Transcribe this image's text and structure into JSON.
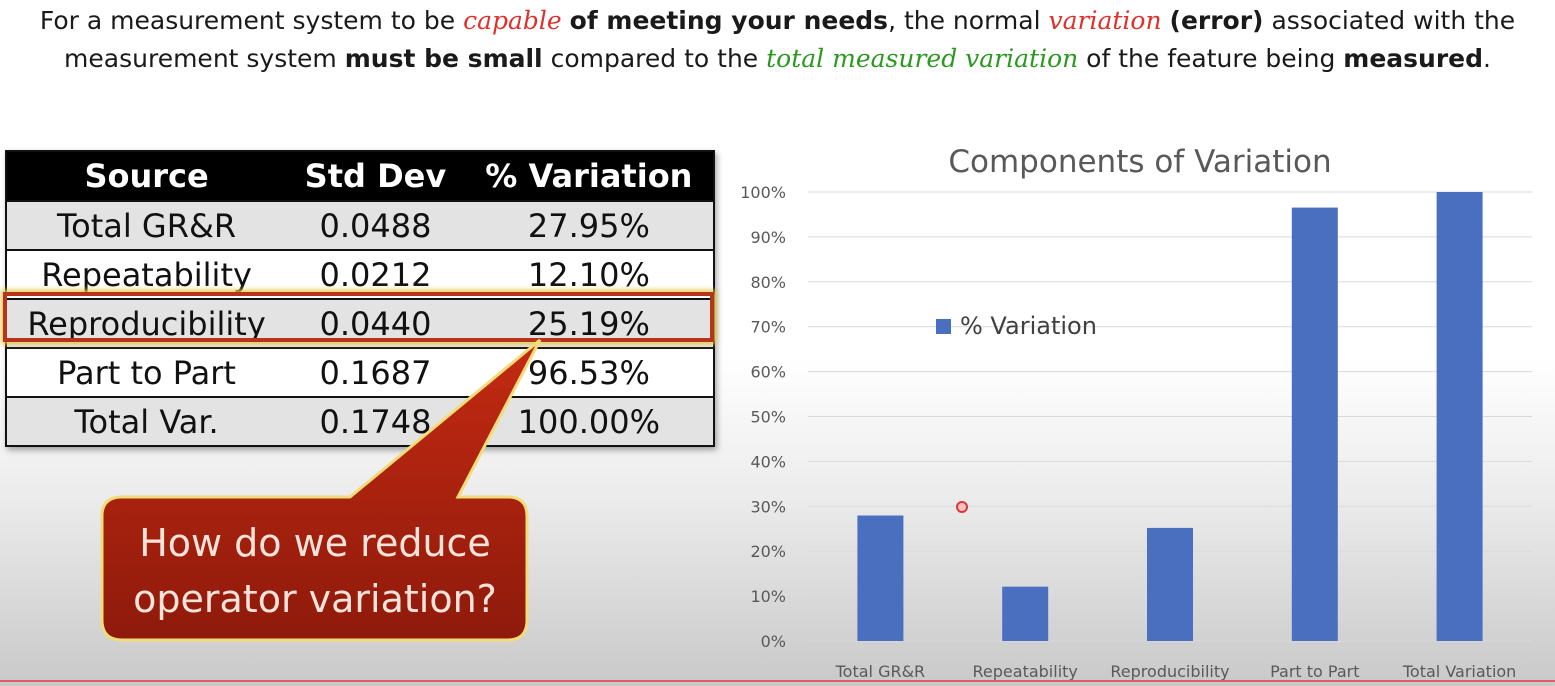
{
  "headline": {
    "l1_a": "For a measurement system to be ",
    "l1_b": "capable",
    "l1_c": "of meeting your needs",
    "l1_d": ", the normal ",
    "l1_e": "variation",
    "l1_f": "(error)",
    "l1_g": " associated with the",
    "l2_a": "measurement system ",
    "l2_b": "must be small",
    "l2_c": " compared to the ",
    "l2_d": "total measured variation",
    "l2_e": " of the feature being ",
    "l2_f": "measured",
    "l2_g": "."
  },
  "table": {
    "headers": [
      "Source",
      "Std Dev",
      "% Variation"
    ],
    "rows": [
      [
        "Total GR&R",
        "0.0488",
        "27.95%"
      ],
      [
        "Repeatability",
        "0.0212",
        "12.10%"
      ],
      [
        "Reproducibility",
        "0.0440",
        "25.19%"
      ],
      [
        "Part to Part",
        "0.1687",
        "96.53%"
      ],
      [
        "Total Var.",
        "0.1748",
        "100.00%"
      ]
    ]
  },
  "callout": {
    "line1": "How do we reduce",
    "line2": "operator variation?"
  },
  "colors": {
    "bar": "#4a6fbe",
    "callout": "#a8200f",
    "highlight": "#b5341a"
  },
  "chart_data": {
    "type": "bar",
    "title": "Components of Variation",
    "categories": [
      "Total GR&R",
      "Repeatability",
      "Reproducibility",
      "Part to Part",
      "Total Variation"
    ],
    "series": [
      {
        "name": "% Variation",
        "values": [
          27.95,
          12.1,
          25.19,
          96.53,
          100.0
        ]
      }
    ],
    "ylim": [
      0,
      100
    ],
    "yticks": [
      "0%",
      "10%",
      "20%",
      "30%",
      "40%",
      "50%",
      "60%",
      "70%",
      "80%",
      "90%",
      "100%"
    ],
    "grid": true,
    "legend": "inside-top-left"
  }
}
